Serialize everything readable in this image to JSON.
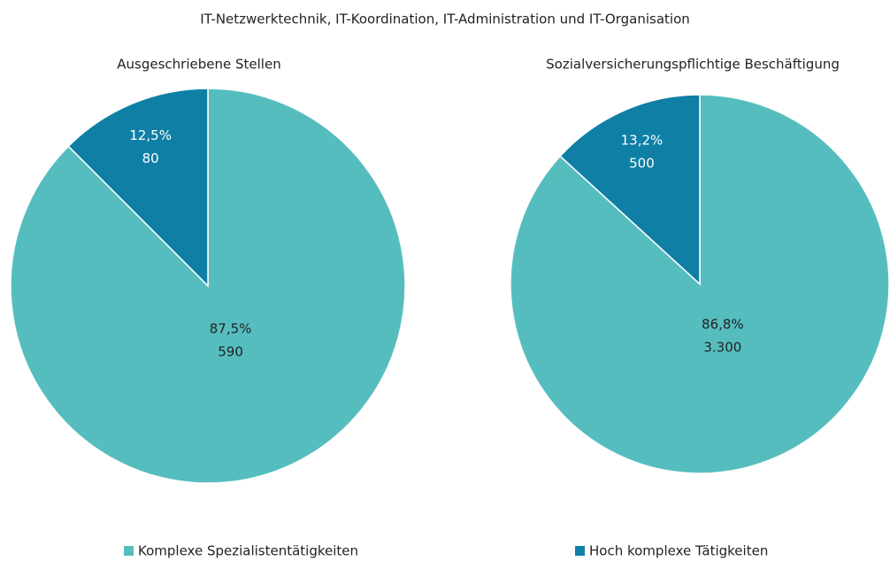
{
  "title": "IT-Netzwerktechnik,  IT-Koordination,  IT-Administration und IT-Organisation",
  "chart_data": [
    {
      "type": "pie",
      "title": "Ausgeschriebene Stellen",
      "categories": [
        "Komplexe Spezialistentätigkeiten",
        "Hoch komplexe Tätigkeiten"
      ],
      "colors": [
        "#56bdbf",
        "#0f7fa6"
      ],
      "values": [
        87.5,
        12.5
      ],
      "value_labels": [
        "87,5%",
        "12,5%"
      ],
      "counts": [
        590,
        80
      ]
    },
    {
      "type": "pie",
      "title": "Sozialversicherungspflichtige  Beschäftigung",
      "categories": [
        "Komplexe Spezialistentätigkeiten",
        "Hoch komplexe Tätigkeiten"
      ],
      "colors": [
        "#56bdbf",
        "#0f7fa6"
      ],
      "values": [
        86.8,
        13.2
      ],
      "value_labels": [
        "86,8%",
        "13,2%"
      ],
      "counts": [
        3300,
        500
      ],
      "count_labels": [
        "3.300",
        "500"
      ]
    }
  ]
}
